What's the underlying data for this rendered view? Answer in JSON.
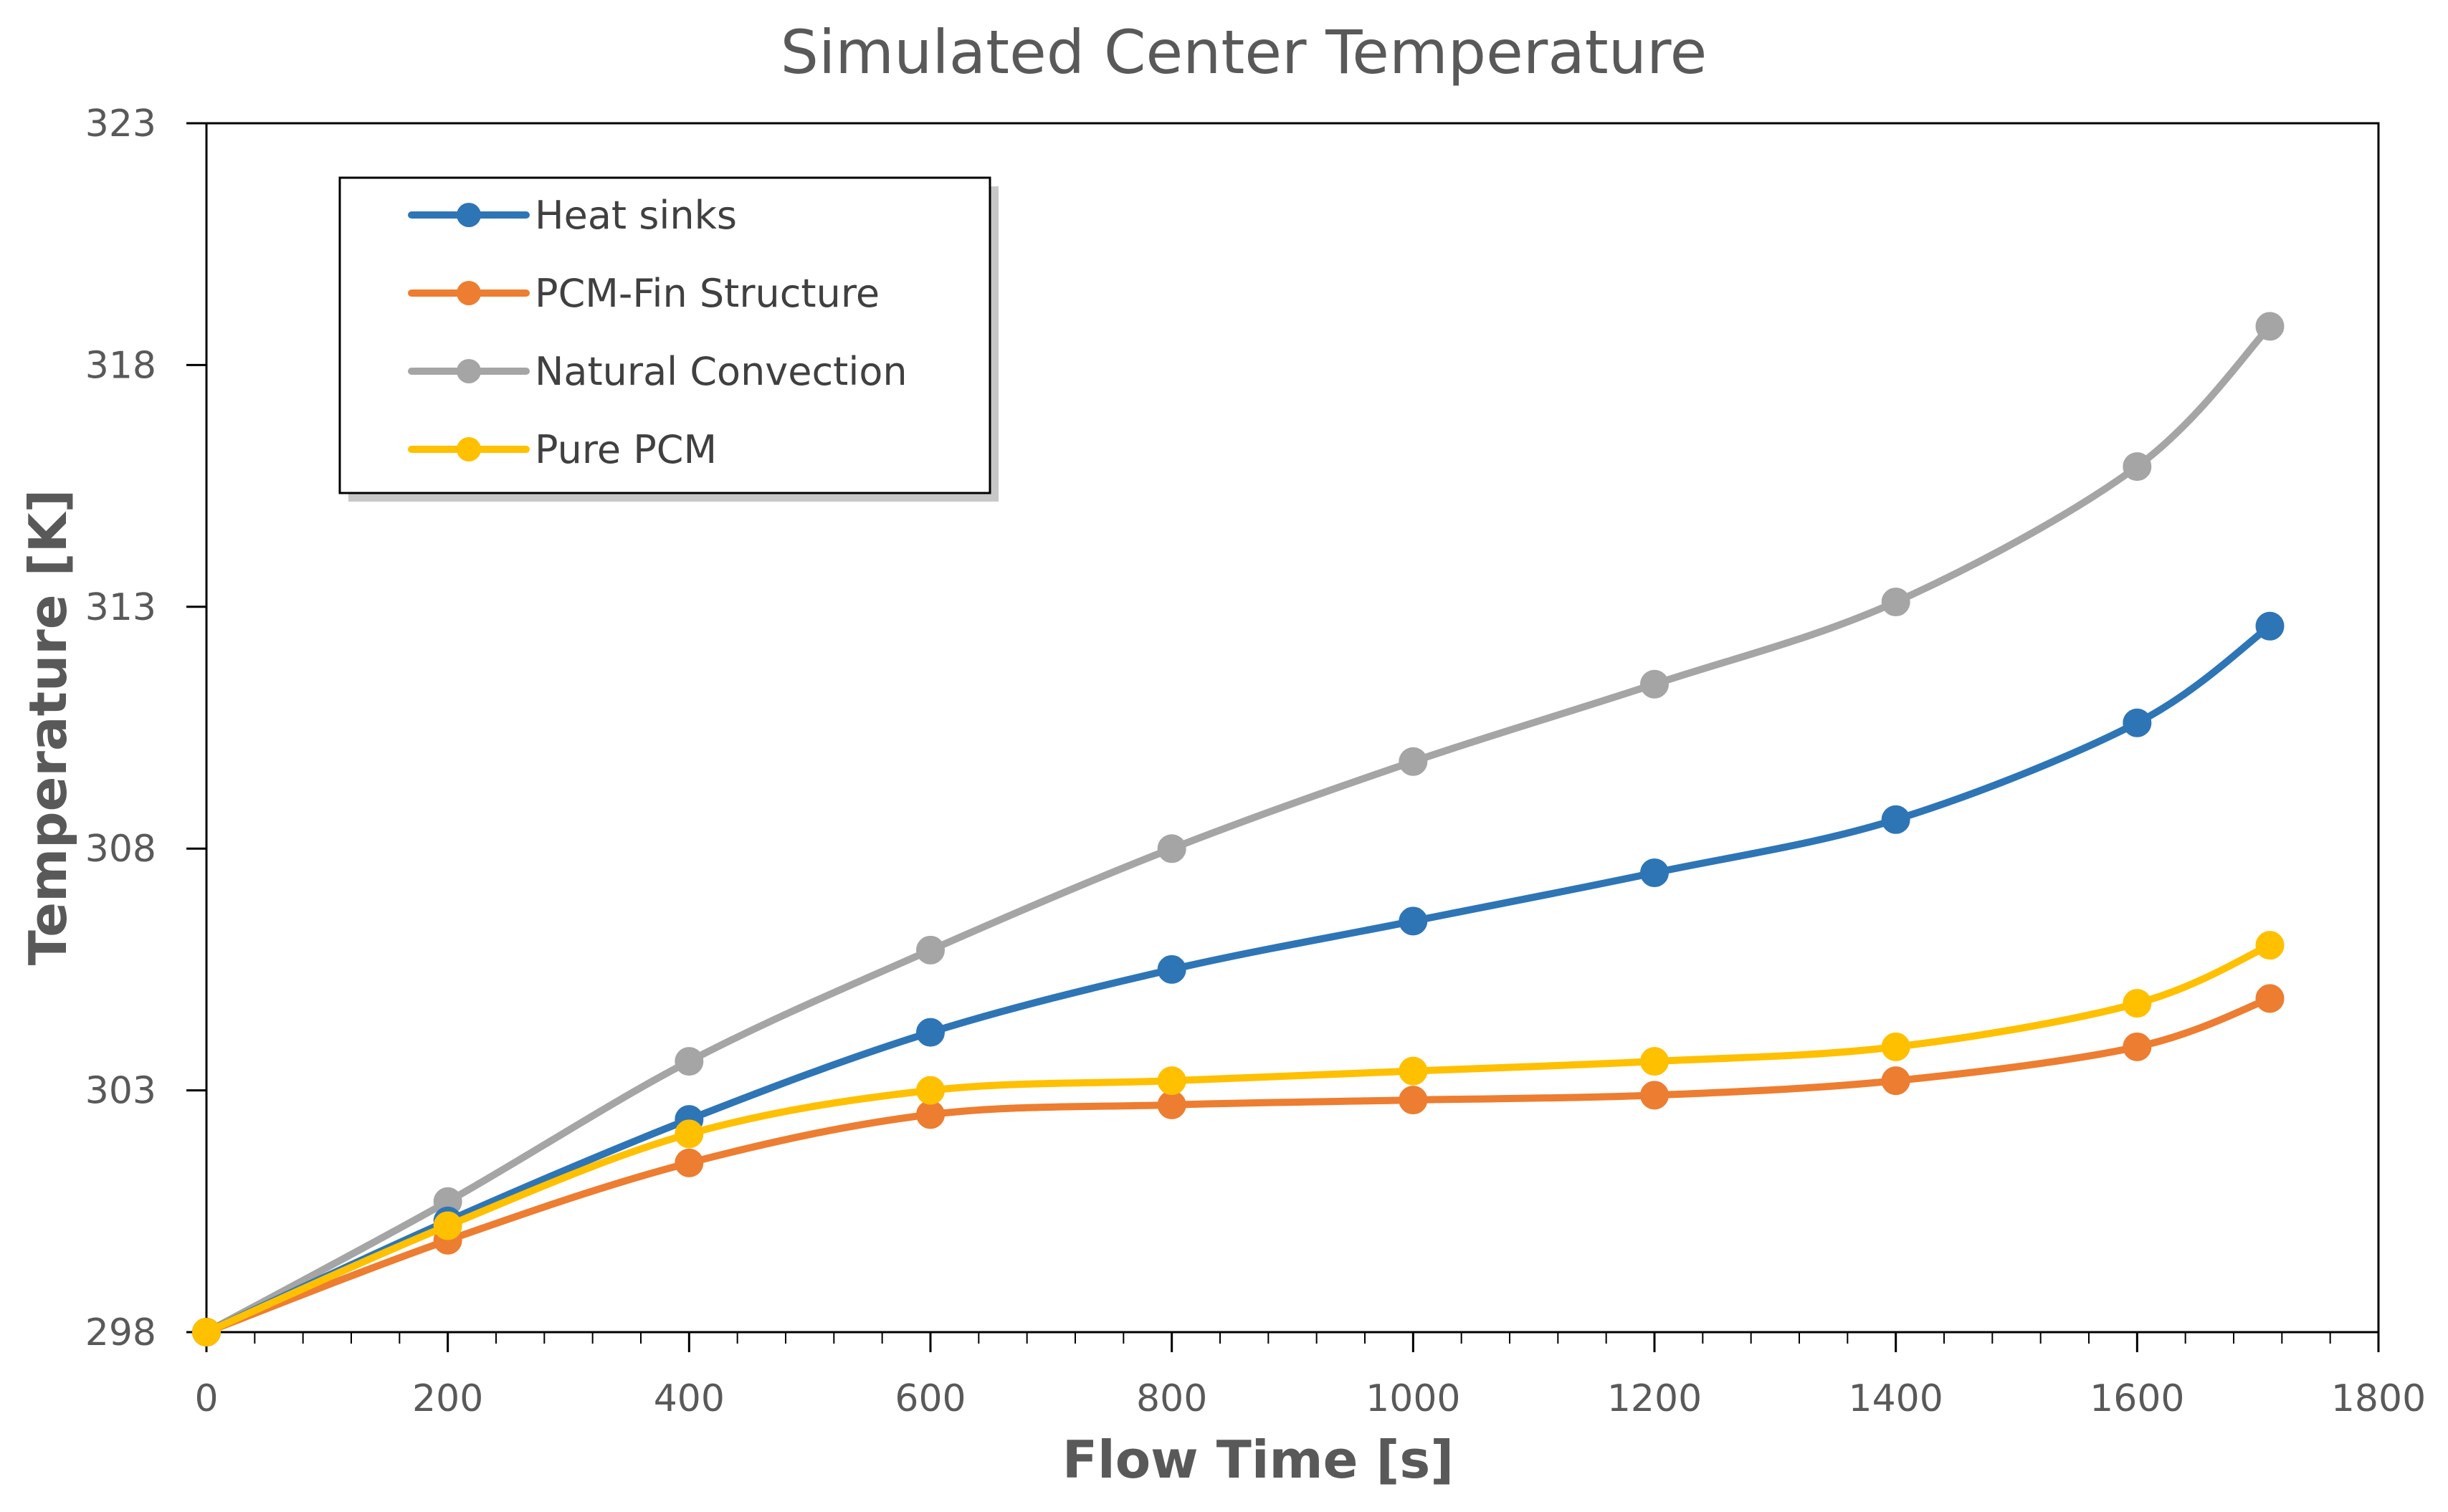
{
  "chart_data": {
    "type": "line",
    "title": "Simulated Center Temperature",
    "xlabel": "Flow Time [s]",
    "ylabel": "Temperature [K]",
    "xlim": [
      0,
      1800
    ],
    "ylim": [
      298,
      323
    ],
    "xticks": [
      0,
      200,
      400,
      600,
      800,
      1000,
      1200,
      1400,
      1600,
      1800
    ],
    "yticks": [
      298,
      303,
      308,
      313,
      318,
      323
    ],
    "x_tick_labels": [
      "0",
      "200",
      "400",
      "600",
      "800",
      "1000",
      "1200",
      "1400",
      "1600",
      "1800"
    ],
    "y_tick_labels": [
      "298",
      "303",
      "308",
      "313",
      "318",
      "323"
    ],
    "x_minor_step": 40,
    "grid": false,
    "legend_position": "top-left",
    "x": [
      0,
      200,
      400,
      600,
      800,
      1000,
      1200,
      1400,
      1600,
      1710
    ],
    "series": [
      {
        "name": "Heat sinks",
        "color": "#2E75B6",
        "values": [
          298.0,
          300.3,
          302.4,
          304.2,
          305.5,
          306.5,
          307.5,
          308.6,
          310.6,
          312.6
        ]
      },
      {
        "name": "PCM-Fin Structure",
        "color": "#ED7D31",
        "values": [
          298.0,
          299.9,
          301.5,
          302.5,
          302.7,
          302.8,
          302.9,
          303.2,
          303.9,
          304.9
        ]
      },
      {
        "name": "Natural Convection",
        "color": "#A5A5A5",
        "values": [
          298.0,
          300.7,
          303.6,
          305.9,
          308.0,
          309.8,
          311.4,
          313.1,
          315.9,
          318.8
        ]
      },
      {
        "name": "Pure PCM",
        "color": "#FFC000",
        "values": [
          298.0,
          300.2,
          302.1,
          303.0,
          303.2,
          303.4,
          303.6,
          303.9,
          304.8,
          306.0
        ]
      }
    ]
  }
}
